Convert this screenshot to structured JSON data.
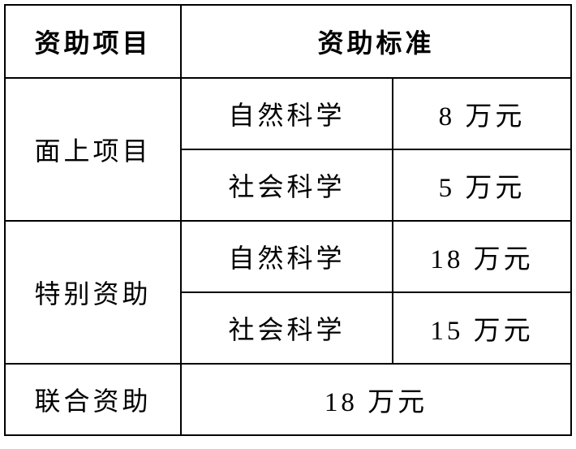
{
  "header": {
    "col1": "资助项目",
    "col2": "资助标准"
  },
  "rows": [
    {
      "project": "面上项目",
      "items": [
        {
          "field": "自然科学",
          "amount": "8 万元"
        },
        {
          "field": "社会科学",
          "amount": "5 万元"
        }
      ]
    },
    {
      "project": "特别资助",
      "items": [
        {
          "field": "自然科学",
          "amount": "18 万元"
        },
        {
          "field": "社会科学",
          "amount": "15 万元"
        }
      ]
    },
    {
      "project": "联合资助",
      "amount": "18 万元"
    }
  ]
}
